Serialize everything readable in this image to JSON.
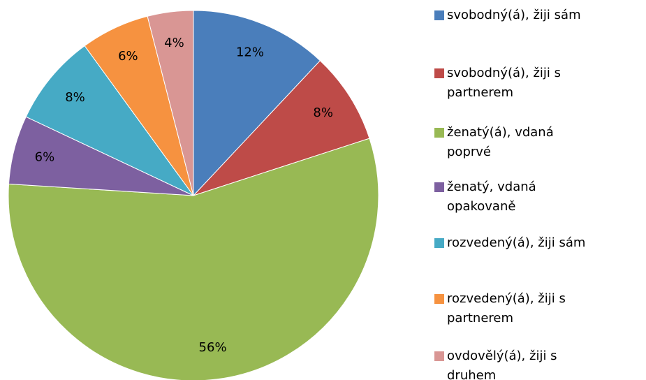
{
  "chart_data": {
    "type": "pie",
    "categories": [
      "svobodný(á), žiji sám",
      "svobodný(á), žiji s partnerem",
      "ženatý(á), vdaná poprvé",
      "ženatý, vdaná opakovaně",
      "rozvedený(á), žiji sám",
      "rozvedený(á), žiji s partnerem",
      "ovdovělý(á), žiji s druhem"
    ],
    "values": [
      12,
      8,
      56,
      6,
      8,
      6,
      4
    ],
    "value_labels": [
      "12%",
      "8%",
      "56%",
      "6%",
      "8%",
      "6%",
      "4%"
    ],
    "colors": [
      "#4a7ebb",
      "#be4b48",
      "#98b954",
      "#7d60a0",
      "#46aac5",
      "#f69240",
      "#d99694"
    ],
    "legend": "right"
  }
}
